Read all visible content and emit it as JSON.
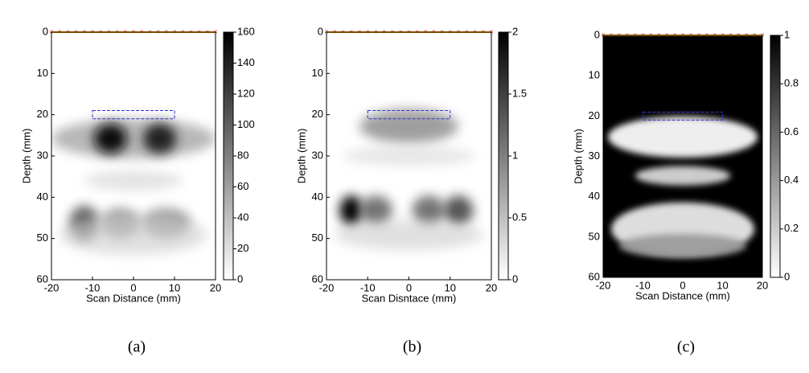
{
  "chart_data": [
    {
      "type": "heatmap",
      "caption": "(a)",
      "xlabel": "Scan Distance (mm)",
      "ylabel": "Depth (mm)",
      "xlim": [
        -20,
        20
      ],
      "xticks": [
        -20,
        -10,
        0,
        10,
        20
      ],
      "ylim": [
        60,
        0
      ],
      "yticks": [
        0,
        10,
        20,
        30,
        40,
        50,
        60
      ],
      "clim": [
        0,
        160
      ],
      "cticks": [
        0,
        20,
        40,
        60,
        80,
        100,
        120,
        140,
        160
      ],
      "colormap": "gray-reversed",
      "background": "#ffffff",
      "roi": {
        "x": [
          -10,
          10
        ],
        "y": [
          19,
          21
        ],
        "color": "#3333cc"
      }
    },
    {
      "type": "heatmap",
      "caption": "(b)",
      "xlabel": "Scan Disntace (mm)",
      "ylabel": "Depth (mm)",
      "xlim": [
        -20,
        20
      ],
      "xticks": [
        -20,
        -10,
        0,
        10,
        20
      ],
      "ylim": [
        60,
        0
      ],
      "yticks": [
        0,
        10,
        20,
        30,
        40,
        50,
        60
      ],
      "clim": [
        0,
        2
      ],
      "cticks": [
        0,
        0.5,
        1,
        1.5,
        2
      ],
      "colormap": "gray-reversed",
      "background": "#ffffff",
      "roi": {
        "x": [
          -10,
          10
        ],
        "y": [
          19,
          21
        ],
        "color": "#3333cc"
      }
    },
    {
      "type": "heatmap",
      "caption": "(c)",
      "xlabel": "Scan Distance (mm)",
      "ylabel": "Depth (mm)",
      "xlim": [
        -20,
        20
      ],
      "xticks": [
        -20,
        -10,
        0,
        10,
        20
      ],
      "ylim": [
        60,
        0
      ],
      "yticks": [
        0,
        10,
        20,
        30,
        40,
        50,
        60
      ],
      "clim": [
        0,
        1
      ],
      "cticks": [
        0,
        0.2,
        0.4,
        0.6,
        0.8,
        1
      ],
      "colormap": "gray-reversed",
      "background": "#000000",
      "roi": {
        "x": [
          -10,
          10
        ],
        "y": [
          19,
          21
        ],
        "color": "#3333cc"
      }
    }
  ]
}
